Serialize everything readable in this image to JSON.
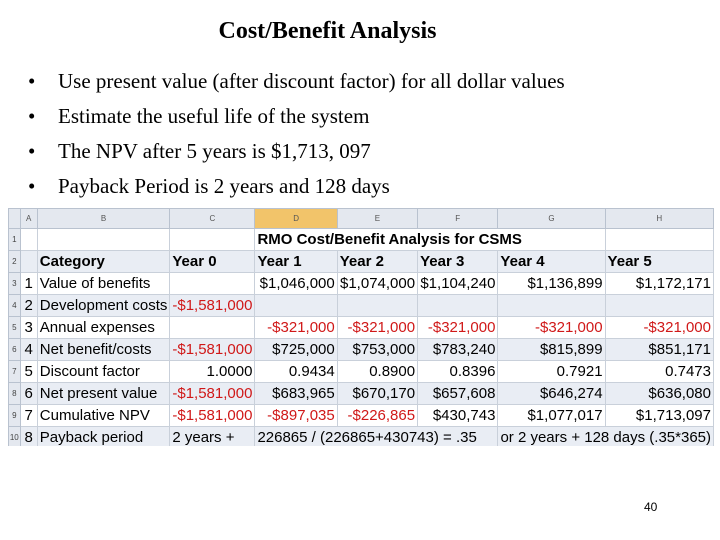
{
  "slide": {
    "title": "Cost/Benefit Analysis",
    "bullets": [
      "Use present value (after discount factor) for all dollar values",
      "Estimate the useful life of the system",
      "The NPV after 5 years is $1,713, 097",
      "Payback Period is 2 years and 128 days"
    ],
    "bullet_glyph": "•",
    "page_number": "40"
  },
  "spreadsheet": {
    "column_letters": [
      "A",
      "B",
      "C",
      "D",
      "E",
      "F",
      "G",
      "H"
    ],
    "row_numbers": [
      "1",
      "2",
      "3",
      "4",
      "5",
      "6",
      "7",
      "8",
      "9",
      "10"
    ],
    "table_title": "RMO Cost/Benefit Analysis for CSMS",
    "header_row": [
      "Category",
      "Year 0",
      "Year 1",
      "Year 2",
      "Year 3",
      "Year 4",
      "Year 5"
    ],
    "rows": [
      {
        "idx": "1",
        "label": "Value of benefits",
        "values": [
          "",
          "$1,046,000",
          "$1,074,000",
          "$1,104,240",
          "$1,136,899",
          "$1,172,171"
        ]
      },
      {
        "idx": "2",
        "label": "Development costs",
        "values": [
          "-$1,581,000",
          "",
          "",
          "",
          "",
          ""
        ]
      },
      {
        "idx": "3",
        "label": "Annual expenses",
        "values": [
          "",
          "-$321,000",
          "-$321,000",
          "-$321,000",
          "-$321,000",
          "-$321,000"
        ]
      },
      {
        "idx": "4",
        "label": "Net benefit/costs",
        "values": [
          "-$1,581,000",
          "$725,000",
          "$753,000",
          "$783,240",
          "$815,899",
          "$851,171"
        ]
      },
      {
        "idx": "5",
        "label": "Discount factor",
        "values": [
          "1.0000",
          "0.9434",
          "0.8900",
          "0.8396",
          "0.7921",
          "0.7473"
        ]
      },
      {
        "idx": "6",
        "label": "Net present value",
        "values": [
          "-$1,581,000",
          "$683,965",
          "$670,170",
          "$657,608",
          "$646,274",
          "$636,080"
        ]
      },
      {
        "idx": "7",
        "label": "Cumulative NPV",
        "values": [
          "-$1,581,000",
          "-$897,035",
          "-$226,865",
          "$430,743",
          "$1,077,017",
          "$1,713,097"
        ]
      }
    ],
    "payback_row": {
      "idx": "8",
      "label": "Payback period",
      "year0_text": "2 years +",
      "formula_text": "226865 / (226865+430743) = .35",
      "result_text": "or 2 years + 128 days (.35*365)"
    },
    "negative_color": "#d01818",
    "band_color": "#e9edf4"
  }
}
